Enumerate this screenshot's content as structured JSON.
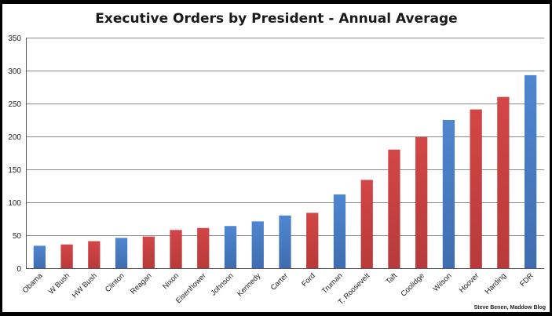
{
  "chart_data": {
    "type": "bar",
    "title": "Executive Orders by President - Annual Average",
    "xlabel": "",
    "ylabel": "",
    "ylim": [
      0,
      350
    ],
    "yticks": [
      0,
      50,
      100,
      150,
      200,
      250,
      300,
      350
    ],
    "grid": true,
    "legend": "none",
    "categories": [
      "Obama",
      "W Bush",
      "HW Bush",
      "Clinton",
      "Reagan",
      "Nixon",
      "Eisenhower",
      "Johnson",
      "Kennedy",
      "Carter",
      "Ford",
      "Truman",
      "T. Roosevelt",
      "Taft",
      "Coolidge",
      "Wilson",
      "Hoover",
      "Harding",
      "FDR"
    ],
    "values": [
      34,
      36,
      41,
      46,
      48,
      58,
      61,
      64,
      71,
      80,
      84,
      112,
      134,
      180,
      199,
      225,
      241,
      260,
      293
    ],
    "party": [
      "D",
      "R",
      "R",
      "D",
      "R",
      "R",
      "R",
      "D",
      "D",
      "D",
      "R",
      "D",
      "R",
      "R",
      "R",
      "D",
      "R",
      "R",
      "D"
    ],
    "colors": {
      "D": "#4a7cc4",
      "R": "#c84040"
    },
    "source": "Steve Benen, Maddow Blog"
  }
}
